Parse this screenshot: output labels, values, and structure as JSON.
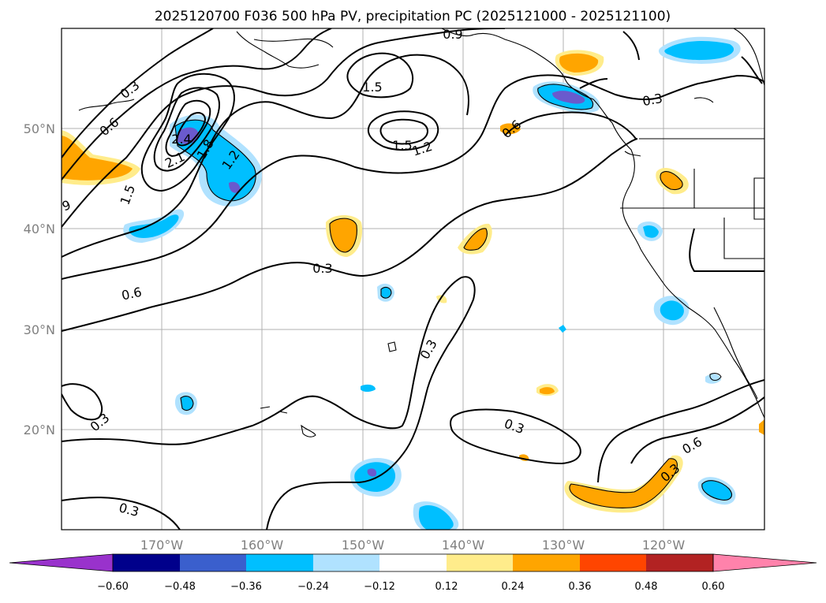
{
  "title": "2025120700 F036 500 hPa PV, precipitation PC (2025121000 - 2025121100)",
  "lat_labels": [
    "50°N",
    "40°N",
    "30°N",
    "20°N"
  ],
  "lon_labels": [
    "170°W",
    "160°W",
    "150°W",
    "140°W",
    "130°W",
    "120°W"
  ],
  "map_extent": {
    "lon_min": -180,
    "lon_max": -110,
    "lat_min": 10,
    "lat_max": 60
  },
  "colorbar": {
    "ticks": [
      "−0.60",
      "−0.48",
      "−0.36",
      "−0.24",
      "−0.12",
      "0.12",
      "0.24",
      "0.36",
      "0.48",
      "0.60"
    ],
    "colors": [
      "#9932cc",
      "#00008b",
      "#3a5fcd",
      "#00bfff",
      "#b0e2ff",
      "#ffffff",
      "#ffec8b",
      "#ffa500",
      "#ff4500",
      "#b22222",
      "#ff82ab"
    ]
  },
  "fill_colors": {
    "neg_deep": "#6a5acd",
    "neg_mid": "#00bfff",
    "neg_light": "#b0e2ff",
    "pos_light": "#ffec8b",
    "pos_mid": "#ffa500"
  },
  "contour_labels": [
    "0.3",
    "0.6",
    "0.9",
    "1.2",
    "1.5",
    "1.8",
    "2.1",
    "2.4",
    "0.9",
    "1.5",
    "1.5",
    "1.2",
    "1.2",
    "0.3",
    "0.6",
    "0.3",
    "0.6",
    "0.3",
    "0.3",
    "0.3",
    "0.3",
    "0.6",
    "0.3",
    "0.3",
    "9"
  ]
}
